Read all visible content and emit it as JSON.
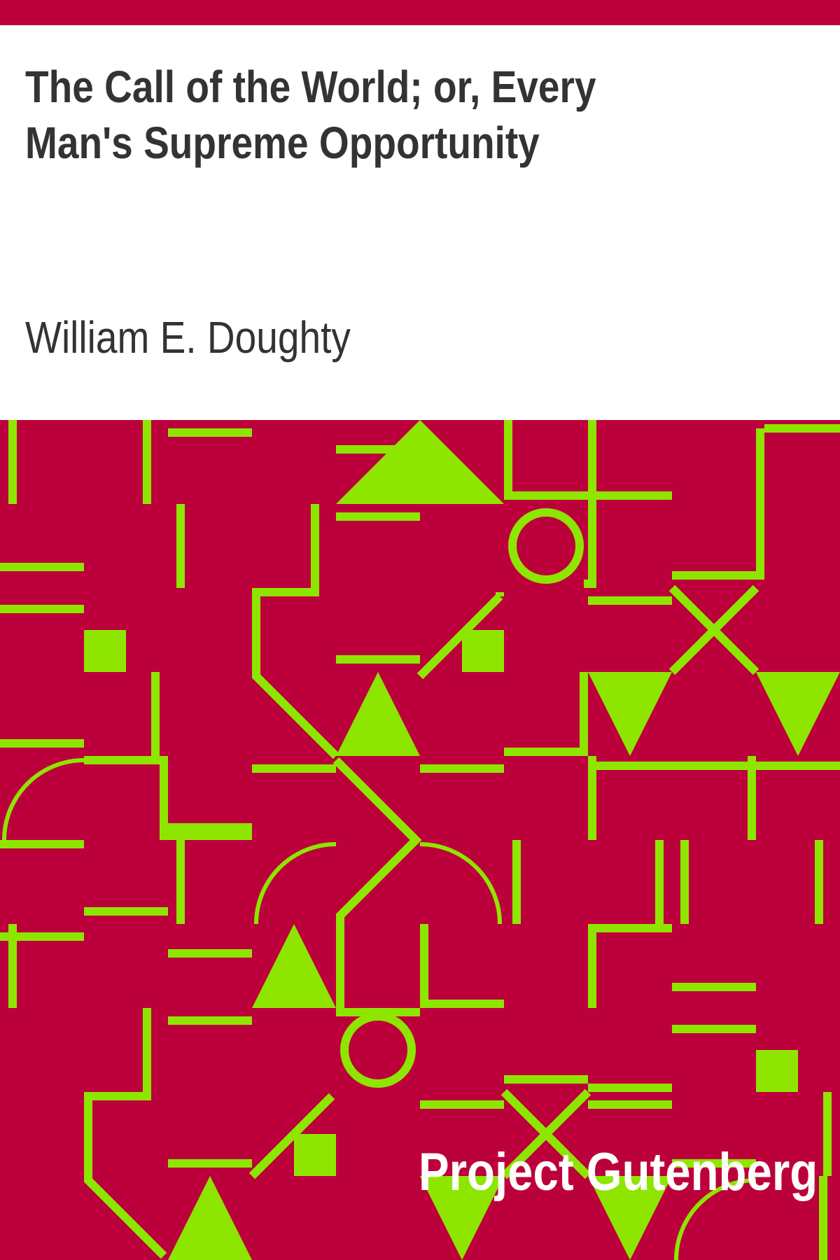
{
  "cover": {
    "title": "The Call of the World; or, Every Man's Supreme Opportunity",
    "author": "William E. Doughty",
    "publisher": "Project Gutenberg"
  },
  "colors": {
    "background": "#bc003b",
    "pattern": "#8ee600",
    "text": "#333333",
    "publisher_text": "#ffffff"
  }
}
